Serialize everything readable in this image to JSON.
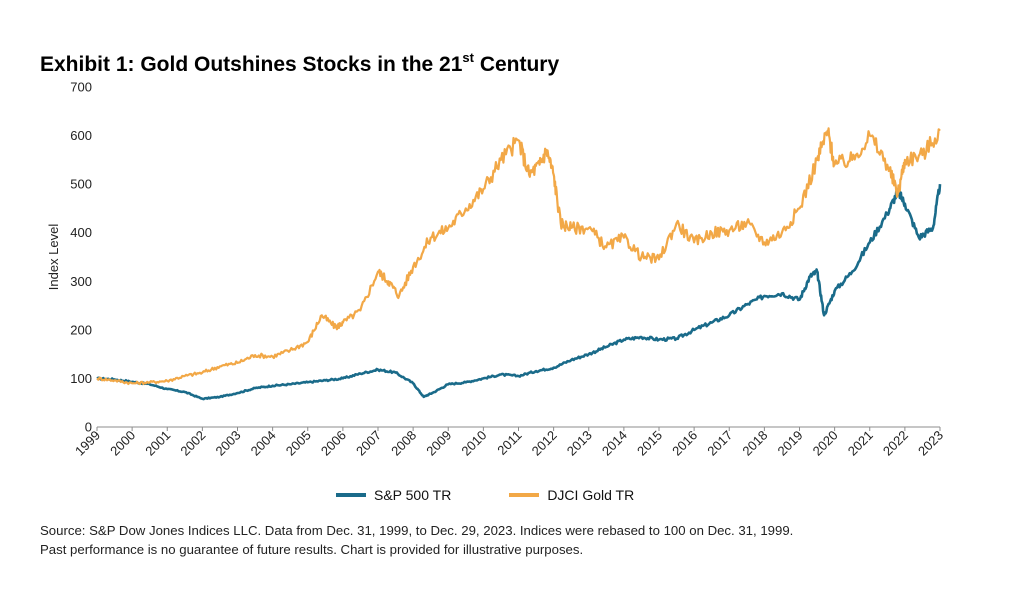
{
  "title": {
    "main": "Exhibit 1: Gold Outshines Stocks in the 21",
    "sup": "st",
    "tail": " Century"
  },
  "source": {
    "line1": "Source: S&P Dow Jones Indices LLC. Data from Dec. 31, 1999, to Dec. 29, 2023. Indices were rebased to 100 on Dec. 31, 1999.",
    "line2": "Past performance is no guarantee of future results. Chart is provided for illustrative purposes."
  },
  "colors": {
    "sp500": "#1a6b8a",
    "gold": "#f2a847",
    "axis": "#8c8c8c"
  },
  "chart_data": {
    "type": "line",
    "title": "Exhibit 1: Gold Outshines Stocks in the 21st Century",
    "xlabel": "",
    "ylabel": "Index Level",
    "ylim": [
      0,
      700
    ],
    "yticks": [
      0,
      100,
      200,
      300,
      400,
      500,
      600,
      700
    ],
    "xlim": [
      1999,
      2023
    ],
    "xticks": [
      "1999",
      "2000",
      "2001",
      "2002",
      "2003",
      "2004",
      "2005",
      "2006",
      "2007",
      "2008",
      "2009",
      "2010",
      "2011",
      "2012",
      "2013",
      "2014",
      "2015",
      "2016",
      "2017",
      "2018",
      "2019",
      "2020",
      "2021",
      "2022",
      "2023"
    ],
    "grid": false,
    "legend_position": "bottom",
    "series": [
      {
        "name": "S&P 500 TR",
        "x": [
          1999,
          1999.5,
          2000,
          2000.5,
          2001,
          2001.5,
          2002,
          2002.5,
          2003,
          2003.5,
          2004,
          2004.5,
          2005,
          2005.5,
          2006,
          2006.5,
          2007,
          2007.5,
          2008,
          2008.3,
          2008.6,
          2009,
          2009.5,
          2010,
          2010.5,
          2011,
          2011.5,
          2012,
          2012.5,
          2013,
          2013.5,
          2014,
          2014.5,
          2015,
          2015.5,
          2016,
          2016.5,
          2017,
          2017.5,
          2018,
          2018.5,
          2019,
          2019.3,
          2019.5,
          2019.7,
          2020,
          2020.5,
          2021,
          2021.5,
          2021.8,
          2022,
          2022.4,
          2022.8,
          2023
        ],
        "y": [
          100,
          98,
          93,
          88,
          78,
          72,
          58,
          62,
          70,
          80,
          85,
          88,
          92,
          96,
          100,
          110,
          118,
          112,
          90,
          62,
          72,
          88,
          92,
          100,
          108,
          105,
          115,
          122,
          138,
          150,
          165,
          180,
          185,
          180,
          182,
          200,
          215,
          230,
          252,
          270,
          275,
          262,
          310,
          320,
          230,
          280,
          320,
          380,
          440,
          485,
          460,
          390,
          410,
          500
        ]
      },
      {
        "name": "DJCI Gold TR",
        "x": [
          1999,
          1999.5,
          2000,
          2000.5,
          2001,
          2001.5,
          2002,
          2002.5,
          2003,
          2003.5,
          2004,
          2004.5,
          2005,
          2005.4,
          2005.8,
          2006,
          2006.5,
          2007,
          2007.3,
          2007.6,
          2008,
          2008.5,
          2009,
          2009.5,
          2010,
          2010.5,
          2011,
          2011.3,
          2011.6,
          2011.8,
          2012,
          2012.2,
          2012.5,
          2013,
          2013.5,
          2014,
          2014.5,
          2015,
          2015.5,
          2016,
          2016.5,
          2017,
          2017.5,
          2018,
          2018.5,
          2019,
          2019.5,
          2019.8,
          2020,
          2020.5,
          2021,
          2021.5,
          2021.8,
          2022,
          2022.5,
          2023
        ],
        "y": [
          100,
          96,
          90,
          92,
          95,
          105,
          112,
          125,
          132,
          148,
          145,
          158,
          175,
          230,
          205,
          215,
          240,
          320,
          300,
          270,
          330,
          390,
          410,
          450,
          490,
          550,
          590,
          520,
          540,
          570,
          520,
          420,
          410,
          410,
          370,
          390,
          350,
          345,
          420,
          380,
          400,
          405,
          420,
          380,
          400,
          450,
          550,
          610,
          540,
          550,
          600,
          540,
          480,
          550,
          560,
          610
        ]
      }
    ]
  }
}
